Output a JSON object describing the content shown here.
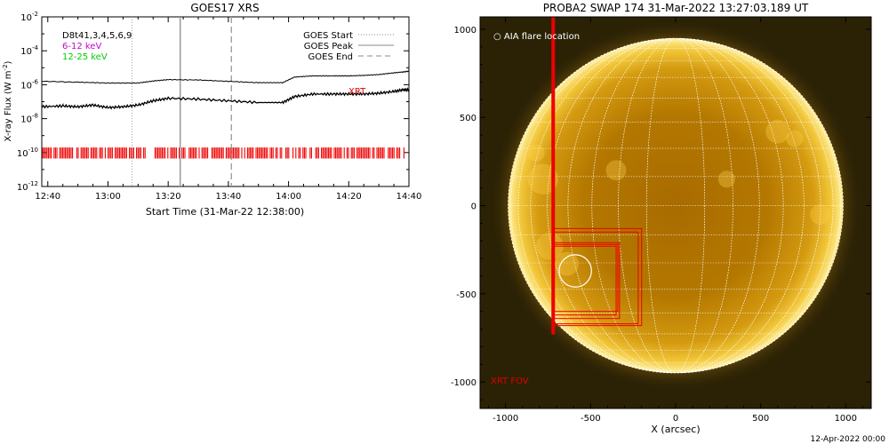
{
  "chart_data": [
    {
      "type": "line",
      "title": "GOES17 XRS",
      "xlabel": "Start Time (31-Mar-22 12:38:00)",
      "ylabel": "X-ray Flux (W m",
      "ylabel_sup": "-2",
      "ylabel_close": ")",
      "y_scale": "log",
      "ylim_exp": [
        -12,
        -2
      ],
      "ytick_exp": [
        -12,
        -10,
        -8,
        -6,
        -4,
        -2
      ],
      "ytick_base": "10",
      "xtick_labels": [
        "12:40",
        "13:00",
        "13:20",
        "13:40",
        "14:00",
        "14:20",
        "14:40"
      ],
      "xtick_minutes": [
        0,
        20,
        40,
        60,
        80,
        100,
        120
      ],
      "xlim_minutes": [
        -2,
        120
      ],
      "legend_left": [
        {
          "name": "D8t41,3,4,5,6,9",
          "color": "#000000"
        },
        {
          "name": "6-12 keV",
          "color": "#cc00cc"
        },
        {
          "name": "12-25 keV",
          "color": "#00cc00"
        }
      ],
      "legend_right": [
        {
          "name": "GOES Start",
          "style": "dotted"
        },
        {
          "name": "GOES Peak",
          "style": "solid"
        },
        {
          "name": "GOES End",
          "style": "dashed"
        }
      ],
      "annotation": "XRT",
      "goes_start_min": 28,
      "goes_peak_min": 44,
      "goes_end_min": 61,
      "series": [
        {
          "name": "",
          "x": [
            -2,
            10,
            20,
            30,
            35,
            40,
            50,
            60,
            70,
            78,
            82,
            88,
            95,
            100,
            105,
            110,
            115,
            118,
            120
          ],
          "y": [
            -5.8,
            -5.85,
            -5.9,
            -5.9,
            -5.78,
            -5.7,
            -5.72,
            -5.8,
            -5.88,
            -5.88,
            -5.55,
            -5.48,
            -5.48,
            -5.48,
            -5.45,
            -5.4,
            -5.3,
            -5.25,
            -5.2
          ]
        },
        {
          "name": "",
          "x": [
            -2,
            5,
            10,
            15,
            20,
            25,
            30,
            35,
            40,
            50,
            60,
            70,
            78,
            82,
            88,
            95,
            100,
            105,
            110,
            115,
            118,
            120
          ],
          "y": [
            -7.3,
            -7.25,
            -7.3,
            -7.2,
            -7.35,
            -7.3,
            -7.2,
            -6.95,
            -6.8,
            -6.85,
            -6.95,
            -7.05,
            -7.05,
            -6.7,
            -6.55,
            -6.55,
            -6.55,
            -6.55,
            -6.5,
            -6.4,
            -6.3,
            -6.3
          ]
        }
      ],
      "xrt_band_exp": [
        -10.35,
        -9.7
      ]
    },
    {
      "type": "scatter",
      "title": "PROBA2 SWAP 174 31-Mar-2022 13:27:03.189 UT",
      "xlabel": "X (arcsec)",
      "ylabel": "",
      "xlim": [
        -1150,
        1150
      ],
      "ylim": [
        -1150,
        1070
      ],
      "xticks": [
        -1000,
        -500,
        0,
        500,
        1000
      ],
      "yticks": [
        -1000,
        -500,
        0,
        500,
        1000
      ],
      "xtick_labels": [
        "-1000",
        "-500",
        "0",
        "500",
        "1000"
      ],
      "ytick_labels": [
        "-1000",
        "-500",
        "0",
        "500",
        "1000"
      ],
      "solar_radius_arcsec": 985,
      "legend": "○ AIA flare location",
      "fov_label": "XRT FOV",
      "flare_location": {
        "x": -590,
        "y": -370,
        "r": 95
      },
      "xrt_fov_vline_x": -720,
      "xrt_fov_boxes": [
        [
          -720,
          -730,
          1150,
          -750
        ],
        [
          -720,
          -680,
          -200,
          -130
        ],
        [
          -720,
          -670,
          -220,
          -150
        ],
        [
          -720,
          -640,
          -330,
          -210
        ],
        [
          -720,
          -620,
          -350,
          -230
        ],
        [
          -720,
          -600,
          -340,
          -220
        ]
      ],
      "footer": "12-Apr-2022 00:00"
    }
  ]
}
